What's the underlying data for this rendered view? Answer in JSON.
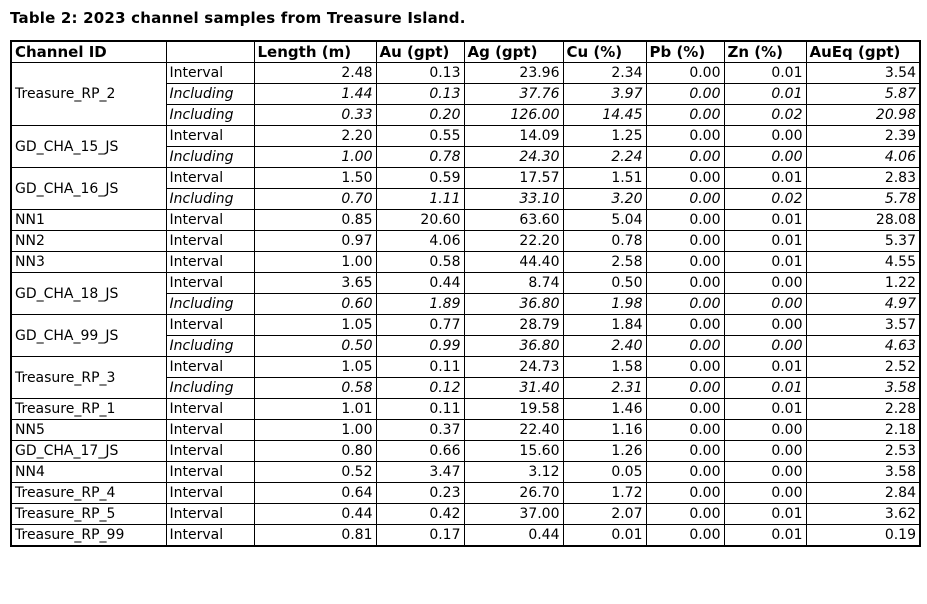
{
  "title": "Table 2: 2023 channel samples from Treasure Island.",
  "colors": {
    "background": "#ffffff",
    "text": "#000000",
    "border": "#000000"
  },
  "table": {
    "headers": [
      "Channel ID",
      "",
      "Length (m)",
      "Au (gpt)",
      "Ag (gpt)",
      "Cu (%)",
      "Pb (%)",
      "Zn (%)",
      "AuEq (gpt)"
    ],
    "groups": [
      {
        "channel_id": "Treasure_RP_2",
        "rows": [
          {
            "type": "Interval",
            "values": [
              "2.48",
              "0.13",
              "23.96",
              "2.34",
              "0.00",
              "0.01",
              "3.54"
            ]
          },
          {
            "type": "Including",
            "values": [
              "1.44",
              "0.13",
              "37.76",
              "3.97",
              "0.00",
              "0.01",
              "5.87"
            ]
          },
          {
            "type": "Including",
            "values": [
              "0.33",
              "0.20",
              "126.00",
              "14.45",
              "0.00",
              "0.02",
              "20.98"
            ]
          }
        ]
      },
      {
        "channel_id": "GD_CHA_15_JS",
        "rows": [
          {
            "type": "Interval",
            "values": [
              "2.20",
              "0.55",
              "14.09",
              "1.25",
              "0.00",
              "0.00",
              "2.39"
            ]
          },
          {
            "type": "Including",
            "values": [
              "1.00",
              "0.78",
              "24.30",
              "2.24",
              "0.00",
              "0.00",
              "4.06"
            ]
          }
        ]
      },
      {
        "channel_id": "GD_CHA_16_JS",
        "rows": [
          {
            "type": "Interval",
            "values": [
              "1.50",
              "0.59",
              "17.57",
              "1.51",
              "0.00",
              "0.01",
              "2.83"
            ]
          },
          {
            "type": "Including",
            "values": [
              "0.70",
              "1.11",
              "33.10",
              "3.20",
              "0.00",
              "0.02",
              "5.78"
            ]
          }
        ]
      },
      {
        "channel_id": "NN1",
        "rows": [
          {
            "type": "Interval",
            "values": [
              "0.85",
              "20.60",
              "63.60",
              "5.04",
              "0.00",
              "0.01",
              "28.08"
            ]
          }
        ]
      },
      {
        "channel_id": "NN2",
        "rows": [
          {
            "type": "Interval",
            "values": [
              "0.97",
              "4.06",
              "22.20",
              "0.78",
              "0.00",
              "0.01",
              "5.37"
            ]
          }
        ]
      },
      {
        "channel_id": "NN3",
        "rows": [
          {
            "type": "Interval",
            "values": [
              "1.00",
              "0.58",
              "44.40",
              "2.58",
              "0.00",
              "0.01",
              "4.55"
            ]
          }
        ]
      },
      {
        "channel_id": "GD_CHA_18_JS",
        "rows": [
          {
            "type": "Interval",
            "values": [
              "3.65",
              "0.44",
              "8.74",
              "0.50",
              "0.00",
              "0.00",
              "1.22"
            ]
          },
          {
            "type": "Including",
            "values": [
              "0.60",
              "1.89",
              "36.80",
              "1.98",
              "0.00",
              "0.00",
              "4.97"
            ]
          }
        ]
      },
      {
        "channel_id": "GD_CHA_99_JS",
        "rows": [
          {
            "type": "Interval",
            "values": [
              "1.05",
              "0.77",
              "28.79",
              "1.84",
              "0.00",
              "0.00",
              "3.57"
            ]
          },
          {
            "type": "Including",
            "values": [
              "0.50",
              "0.99",
              "36.80",
              "2.40",
              "0.00",
              "0.00",
              "4.63"
            ]
          }
        ]
      },
      {
        "channel_id": "Treasure_RP_3",
        "rows": [
          {
            "type": "Interval",
            "values": [
              "1.05",
              "0.11",
              "24.73",
              "1.58",
              "0.00",
              "0.01",
              "2.52"
            ]
          },
          {
            "type": "Including",
            "values": [
              "0.58",
              "0.12",
              "31.40",
              "2.31",
              "0.00",
              "0.01",
              "3.58"
            ]
          }
        ]
      },
      {
        "channel_id": "Treasure_RP_1",
        "rows": [
          {
            "type": "Interval",
            "values": [
              "1.01",
              "0.11",
              "19.58",
              "1.46",
              "0.00",
              "0.01",
              "2.28"
            ]
          }
        ]
      },
      {
        "channel_id": "NN5",
        "rows": [
          {
            "type": "Interval",
            "values": [
              "1.00",
              "0.37",
              "22.40",
              "1.16",
              "0.00",
              "0.00",
              "2.18"
            ]
          }
        ]
      },
      {
        "channel_id": "GD_CHA_17_JS",
        "rows": [
          {
            "type": "Interval",
            "values": [
              "0.80",
              "0.66",
              "15.60",
              "1.26",
              "0.00",
              "0.00",
              "2.53"
            ]
          }
        ]
      },
      {
        "channel_id": "NN4",
        "rows": [
          {
            "type": "Interval",
            "values": [
              "0.52",
              "3.47",
              "3.12",
              "0.05",
              "0.00",
              "0.00",
              "3.58"
            ]
          }
        ]
      },
      {
        "channel_id": "Treasure_RP_4",
        "rows": [
          {
            "type": "Interval",
            "values": [
              "0.64",
              "0.23",
              "26.70",
              "1.72",
              "0.00",
              "0.00",
              "2.84"
            ]
          }
        ]
      },
      {
        "channel_id": "Treasure_RP_5",
        "rows": [
          {
            "type": "Interval",
            "values": [
              "0.44",
              "0.42",
              "37.00",
              "2.07",
              "0.00",
              "0.01",
              "3.62"
            ]
          }
        ]
      },
      {
        "channel_id": "Treasure_RP_99",
        "rows": [
          {
            "type": "Interval",
            "values": [
              "0.81",
              "0.17",
              "0.44",
              "0.01",
              "0.00",
              "0.01",
              "0.19"
            ]
          }
        ]
      }
    ]
  }
}
